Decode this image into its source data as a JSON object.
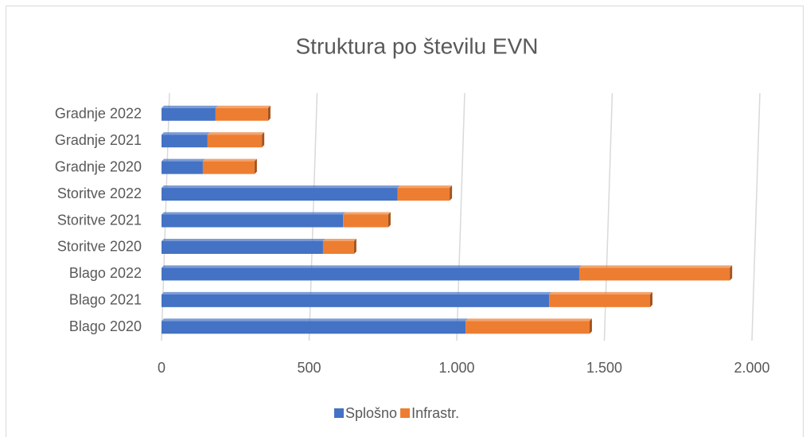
{
  "chart_data": {
    "type": "bar",
    "orientation": "horizontal",
    "stacked": true,
    "title": "Struktura po številu EVN",
    "categories": [
      "Blago 2020",
      "Blago 2021",
      "Blago 2022",
      "Storitve 2020",
      "Storitve 2021",
      "Storitve 2022",
      "Gradnje 2020",
      "Gradnje 2021",
      "Gradnje 2022"
    ],
    "series": [
      {
        "name": "Splošno",
        "color": "#4472c4",
        "values": [
          1030,
          1313,
          1415,
          547,
          615,
          800,
          140,
          156,
          183
        ]
      },
      {
        "name": "Infrastr.",
        "color": "#ed7d31",
        "values": [
          420,
          342,
          510,
          105,
          153,
          176,
          175,
          184,
          178
        ]
      }
    ],
    "xlim": [
      0,
      2000
    ],
    "xticks": [
      0,
      500,
      {
        "value": 1000,
        "label": "1.000"
      },
      {
        "value": 1500,
        "label": "1.500"
      },
      {
        "value": 2000,
        "label": "2.000"
      }
    ],
    "grid": true,
    "legend": "bottom"
  }
}
